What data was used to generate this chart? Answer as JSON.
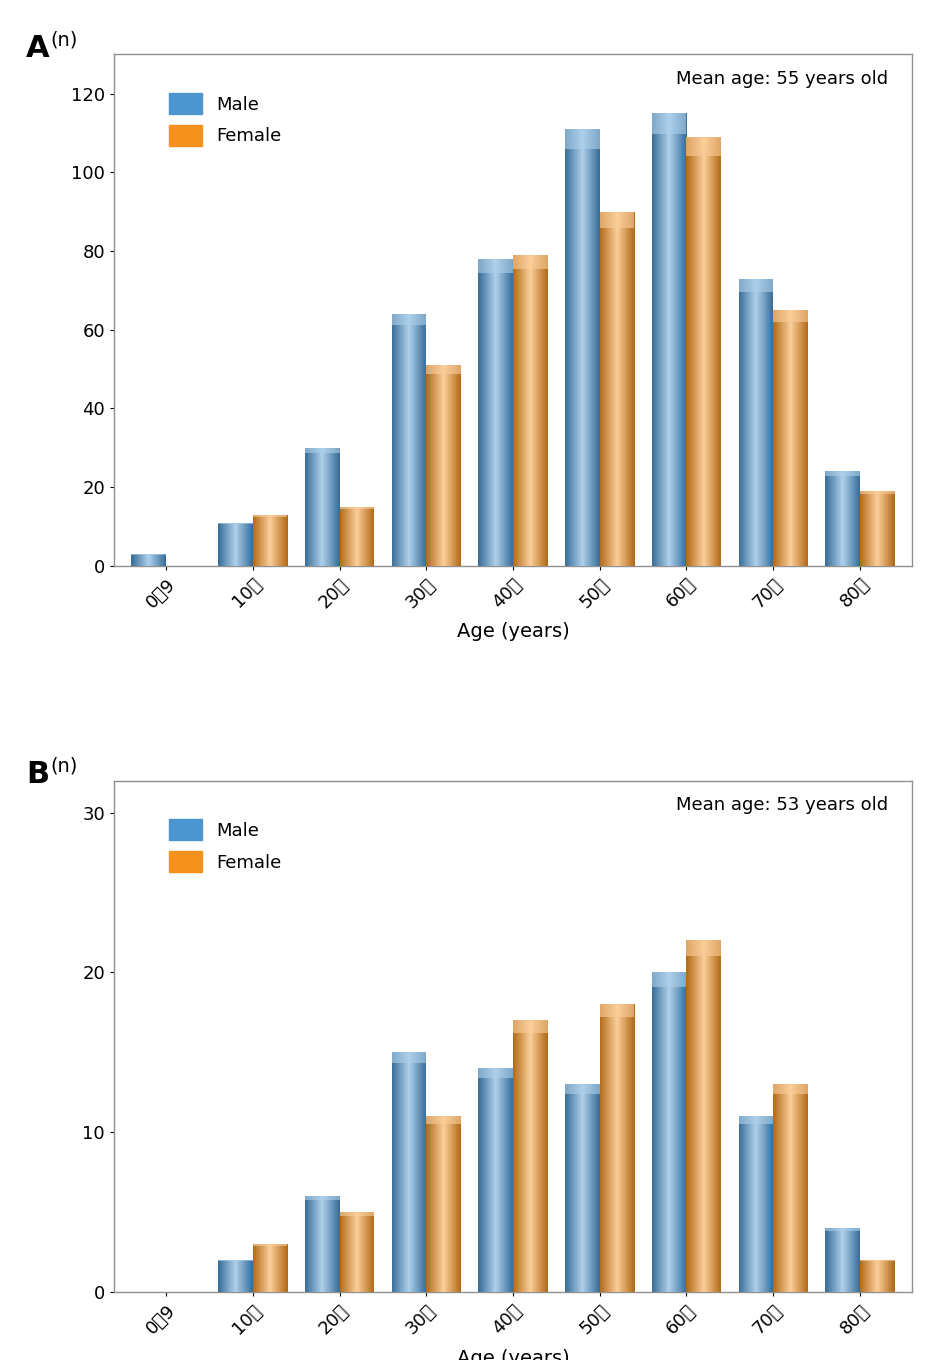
{
  "panel_A": {
    "label": "A",
    "title": "Mean age: 55 years old",
    "ylabel": "(n)",
    "xlabel": "Age (years)",
    "categories": [
      "0～9",
      "10～",
      "20～",
      "30～",
      "40～",
      "50～",
      "60～",
      "70～",
      "80～"
    ],
    "male": [
      3,
      11,
      30,
      64,
      78,
      111,
      115,
      73,
      24
    ],
    "female": [
      0,
      13,
      15,
      51,
      79,
      90,
      109,
      65,
      19
    ],
    "ylim": [
      0,
      130
    ],
    "yticks": [
      0,
      20,
      40,
      60,
      80,
      100,
      120
    ],
    "male_color": "#4B96D1",
    "female_color": "#F5921E"
  },
  "panel_B": {
    "label": "B",
    "title": "Mean age: 53 years old",
    "ylabel": "(n)",
    "xlabel": "Age (years)",
    "categories": [
      "0～9",
      "10～",
      "20～",
      "30～",
      "40～",
      "50～",
      "60～",
      "70～",
      "80～"
    ],
    "male": [
      0,
      2,
      6,
      15,
      14,
      13,
      20,
      11,
      4
    ],
    "female": [
      0,
      3,
      5,
      11,
      17,
      18,
      22,
      13,
      2
    ],
    "ylim": [
      0,
      32
    ],
    "yticks": [
      0,
      10,
      20,
      30
    ],
    "male_color": "#4B96D1",
    "female_color": "#F5921E"
  },
  "bar_width": 0.4,
  "legend_male": "Male",
  "legend_female": "Female",
  "spine_color": "#909090",
  "tick_labelsize": 13,
  "axis_labelsize": 14,
  "title_fontsize": 13,
  "panel_label_fontsize": 22
}
